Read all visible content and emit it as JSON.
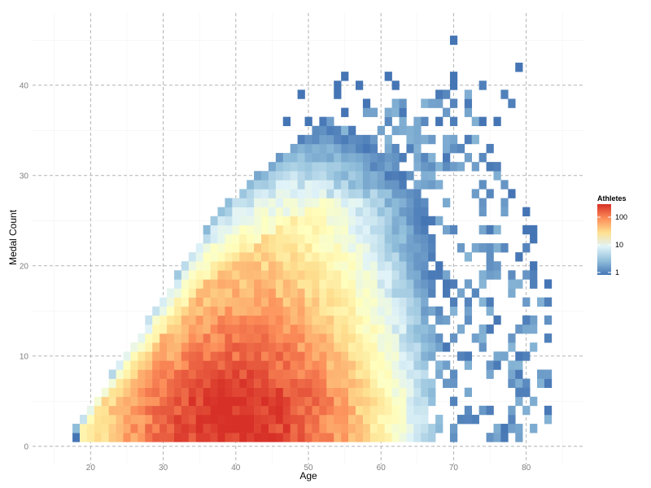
{
  "chart_data": {
    "type": "heatmap",
    "title": "",
    "xlabel": "Age",
    "ylabel": "Medal Count",
    "xlim": [
      12,
      88
    ],
    "ylim": [
      -2,
      48
    ],
    "x_ticks": [
      "20",
      "30",
      "40",
      "50",
      "60",
      "70",
      "80"
    ],
    "y_ticks": [
      "0",
      "10",
      "20",
      "30",
      "40"
    ],
    "grid": true,
    "legend": {
      "title": "Athletes",
      "placement": "right",
      "scale": "log",
      "labels": [
        "100",
        "10",
        "1"
      ],
      "colors": [
        "#d73027",
        "#fc8d59",
        "#fee090",
        "#e0f3f8",
        "#91bfdb",
        "#4575b4"
      ]
    },
    "note": "Each cell is one age (years) by medal count bin; color encodes number of athletes on a log scale.",
    "cells": []
  }
}
